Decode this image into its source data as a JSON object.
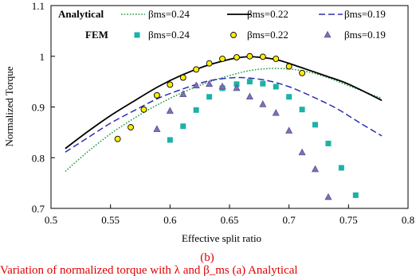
{
  "colors": {
    "black": "#000000",
    "green": "#1a9a3c",
    "blue": "#2b2fb4",
    "teal": "#1ab3a6",
    "yellow": "#ffee00",
    "purple": "#7f6fb5",
    "red": "#e00000"
  },
  "panel_label": "(b)",
  "caption": "Variation of normalized torque with λ and β_ms (a) Analytical",
  "chart_data": {
    "type": "line",
    "xlabel": "Effective split ratio",
    "ylabel": "Normalized Torque",
    "xlim": [
      0.5,
      0.8
    ],
    "ylim": [
      0.7,
      1.1
    ],
    "xticks": [
      "0.5",
      "0.55",
      "0.6",
      "0.65",
      "0.7",
      "0.75",
      "0.8"
    ],
    "yticks": [
      "0.7",
      "0.8",
      "0.9",
      "1",
      "1.1"
    ],
    "grid": false,
    "legend": {
      "placement": "top",
      "row_labels": [
        "Analytical",
        "FEM"
      ],
      "entries": [
        "βms=0.24",
        "βms=0.22",
        "βms=0.19",
        "βms=0.24",
        "βms=0.22",
        "βms=0.19"
      ]
    },
    "series": [
      {
        "name": "βms=0.24",
        "group": "Analytical",
        "kind": "line",
        "style": "dotted",
        "color": "green",
        "x": [
          0.512,
          0.53,
          0.55,
          0.57,
          0.59,
          0.61,
          0.63,
          0.65,
          0.67,
          0.69,
          0.71,
          0.73,
          0.75,
          0.778
        ],
        "y": [
          0.773,
          0.81,
          0.847,
          0.878,
          0.905,
          0.928,
          0.947,
          0.962,
          0.973,
          0.976,
          0.972,
          0.96,
          0.942,
          0.917
        ]
      },
      {
        "name": "βms=0.22",
        "group": "Analytical",
        "kind": "line",
        "style": "solid",
        "color": "black",
        "x": [
          0.512,
          0.53,
          0.55,
          0.57,
          0.59,
          0.61,
          0.63,
          0.65,
          0.66,
          0.67,
          0.69,
          0.71,
          0.73,
          0.75,
          0.778
        ],
        "y": [
          0.818,
          0.85,
          0.883,
          0.912,
          0.94,
          0.963,
          0.981,
          0.994,
          0.998,
          0.999,
          0.993,
          0.978,
          0.962,
          0.945,
          0.913
        ]
      },
      {
        "name": "βms=0.19",
        "group": "Analytical",
        "kind": "line",
        "style": "dashed",
        "color": "blue",
        "x": [
          0.512,
          0.53,
          0.55,
          0.57,
          0.59,
          0.61,
          0.63,
          0.645,
          0.66,
          0.68,
          0.7,
          0.72,
          0.74,
          0.76,
          0.778
        ],
        "y": [
          0.811,
          0.838,
          0.868,
          0.893,
          0.917,
          0.935,
          0.95,
          0.956,
          0.958,
          0.953,
          0.94,
          0.92,
          0.897,
          0.868,
          0.843
        ]
      },
      {
        "name": "βms=0.24",
        "group": "FEM",
        "kind": "scatter",
        "marker": "square",
        "color": "teal",
        "x": [
          0.6,
          0.611,
          0.622,
          0.633,
          0.644,
          0.656,
          0.667,
          0.678,
          0.689,
          0.7,
          0.711,
          0.722,
          0.733,
          0.744,
          0.756
        ],
        "y": [
          0.835,
          0.862,
          0.894,
          0.92,
          0.937,
          0.945,
          0.95,
          0.946,
          0.94,
          0.92,
          0.895,
          0.865,
          0.828,
          0.78,
          0.726
        ]
      },
      {
        "name": "βms=0.22",
        "group": "FEM",
        "kind": "scatter",
        "marker": "circle",
        "color": "yellow",
        "x": [
          0.556,
          0.567,
          0.578,
          0.589,
          0.6,
          0.611,
          0.622,
          0.633,
          0.644,
          0.656,
          0.667,
          0.678,
          0.689,
          0.7,
          0.711
        ],
        "y": [
          0.837,
          0.86,
          0.895,
          0.923,
          0.944,
          0.958,
          0.974,
          0.986,
          0.995,
          0.998,
          1.0,
          0.999,
          0.995,
          0.98,
          0.967
        ]
      },
      {
        "name": "βms=0.19",
        "group": "FEM",
        "kind": "scatter",
        "marker": "triangle",
        "color": "purple",
        "x": [
          0.589,
          0.6,
          0.611,
          0.622,
          0.633,
          0.644,
          0.656,
          0.667,
          0.678,
          0.689,
          0.7,
          0.711,
          0.722,
          0.733
        ],
        "y": [
          0.856,
          0.892,
          0.925,
          0.942,
          0.945,
          0.94,
          0.937,
          0.92,
          0.905,
          0.888,
          0.853,
          0.81,
          0.777,
          0.722
        ]
      }
    ]
  }
}
